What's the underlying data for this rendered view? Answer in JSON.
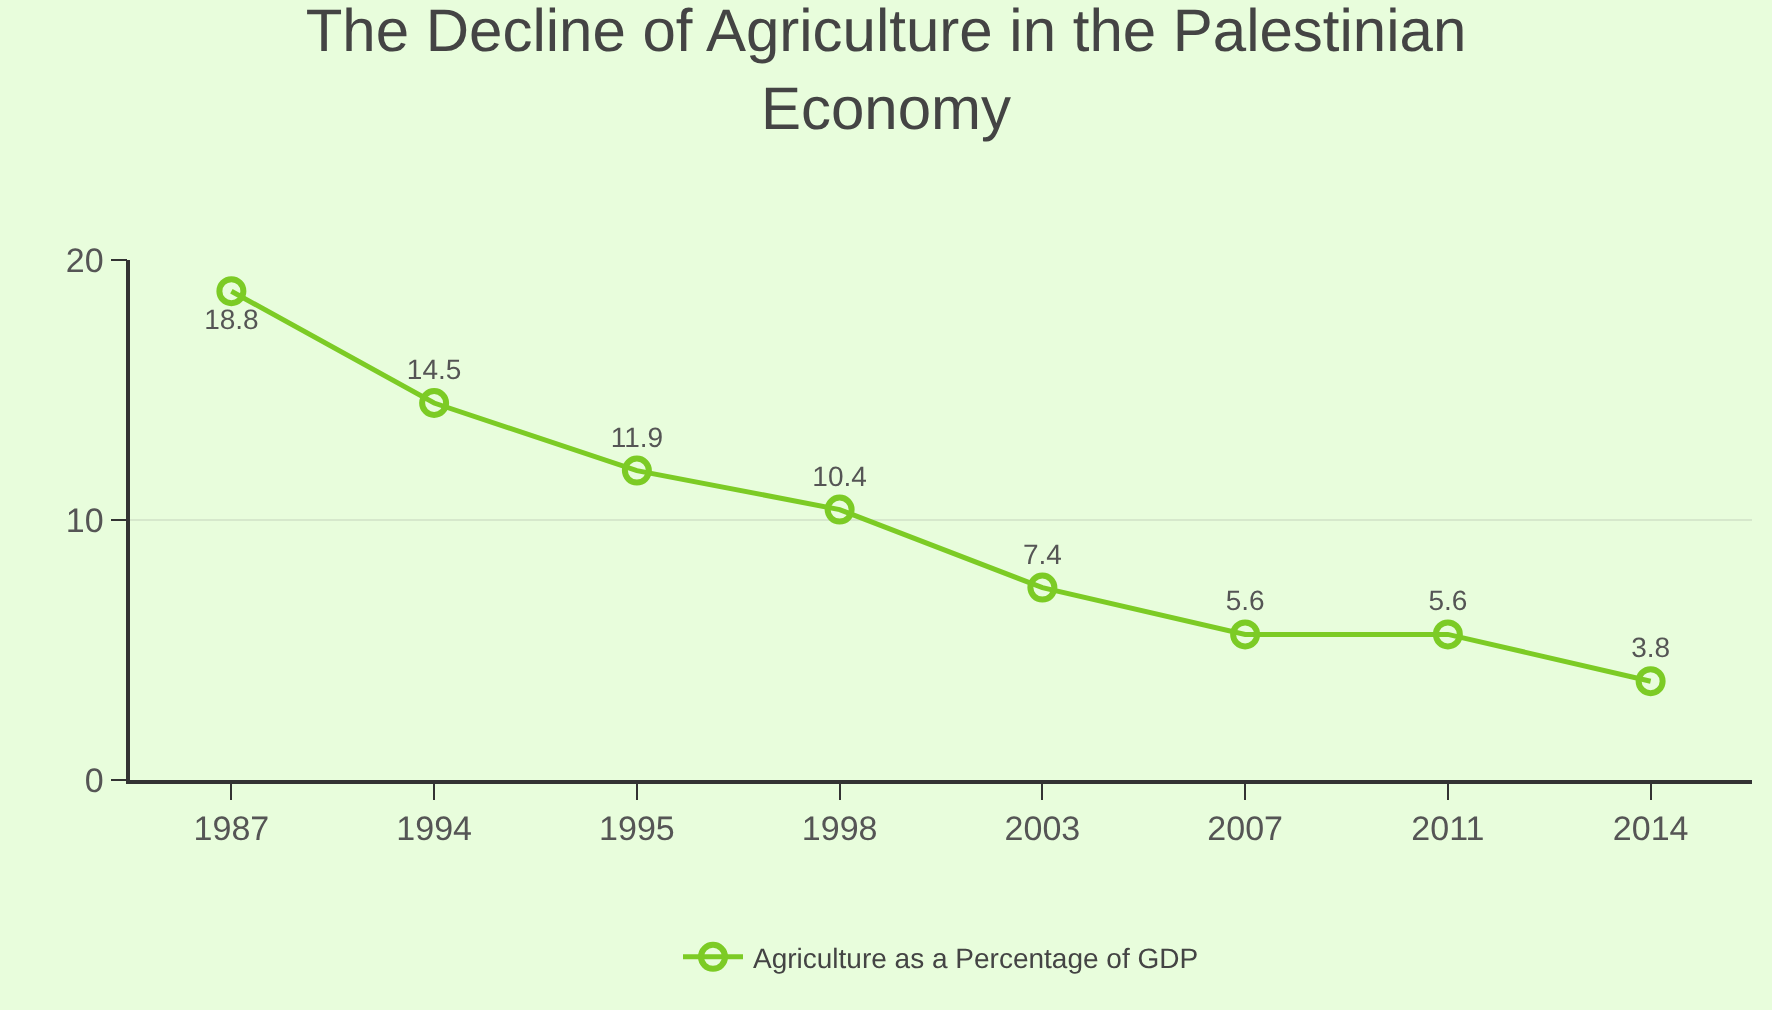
{
  "chart_data": {
    "type": "line",
    "title": "The Decline of Agriculture in the Palestinian Economy",
    "categories": [
      "1987",
      "1994",
      "1995",
      "1998",
      "2003",
      "2007",
      "2011",
      "2014"
    ],
    "series": [
      {
        "name": "Agriculture as a Percentage of GDP",
        "color": "#7ccb25",
        "values": [
          18.8,
          14.5,
          11.9,
          10.4,
          7.4,
          5.6,
          5.6,
          3.8
        ]
      }
    ],
    "ylim": [
      0,
      20
    ],
    "yticks": [
      0,
      10,
      20
    ],
    "grid": "y",
    "legend": "bottom",
    "marker": "circle",
    "line_style": "solid",
    "data_labels": true
  }
}
